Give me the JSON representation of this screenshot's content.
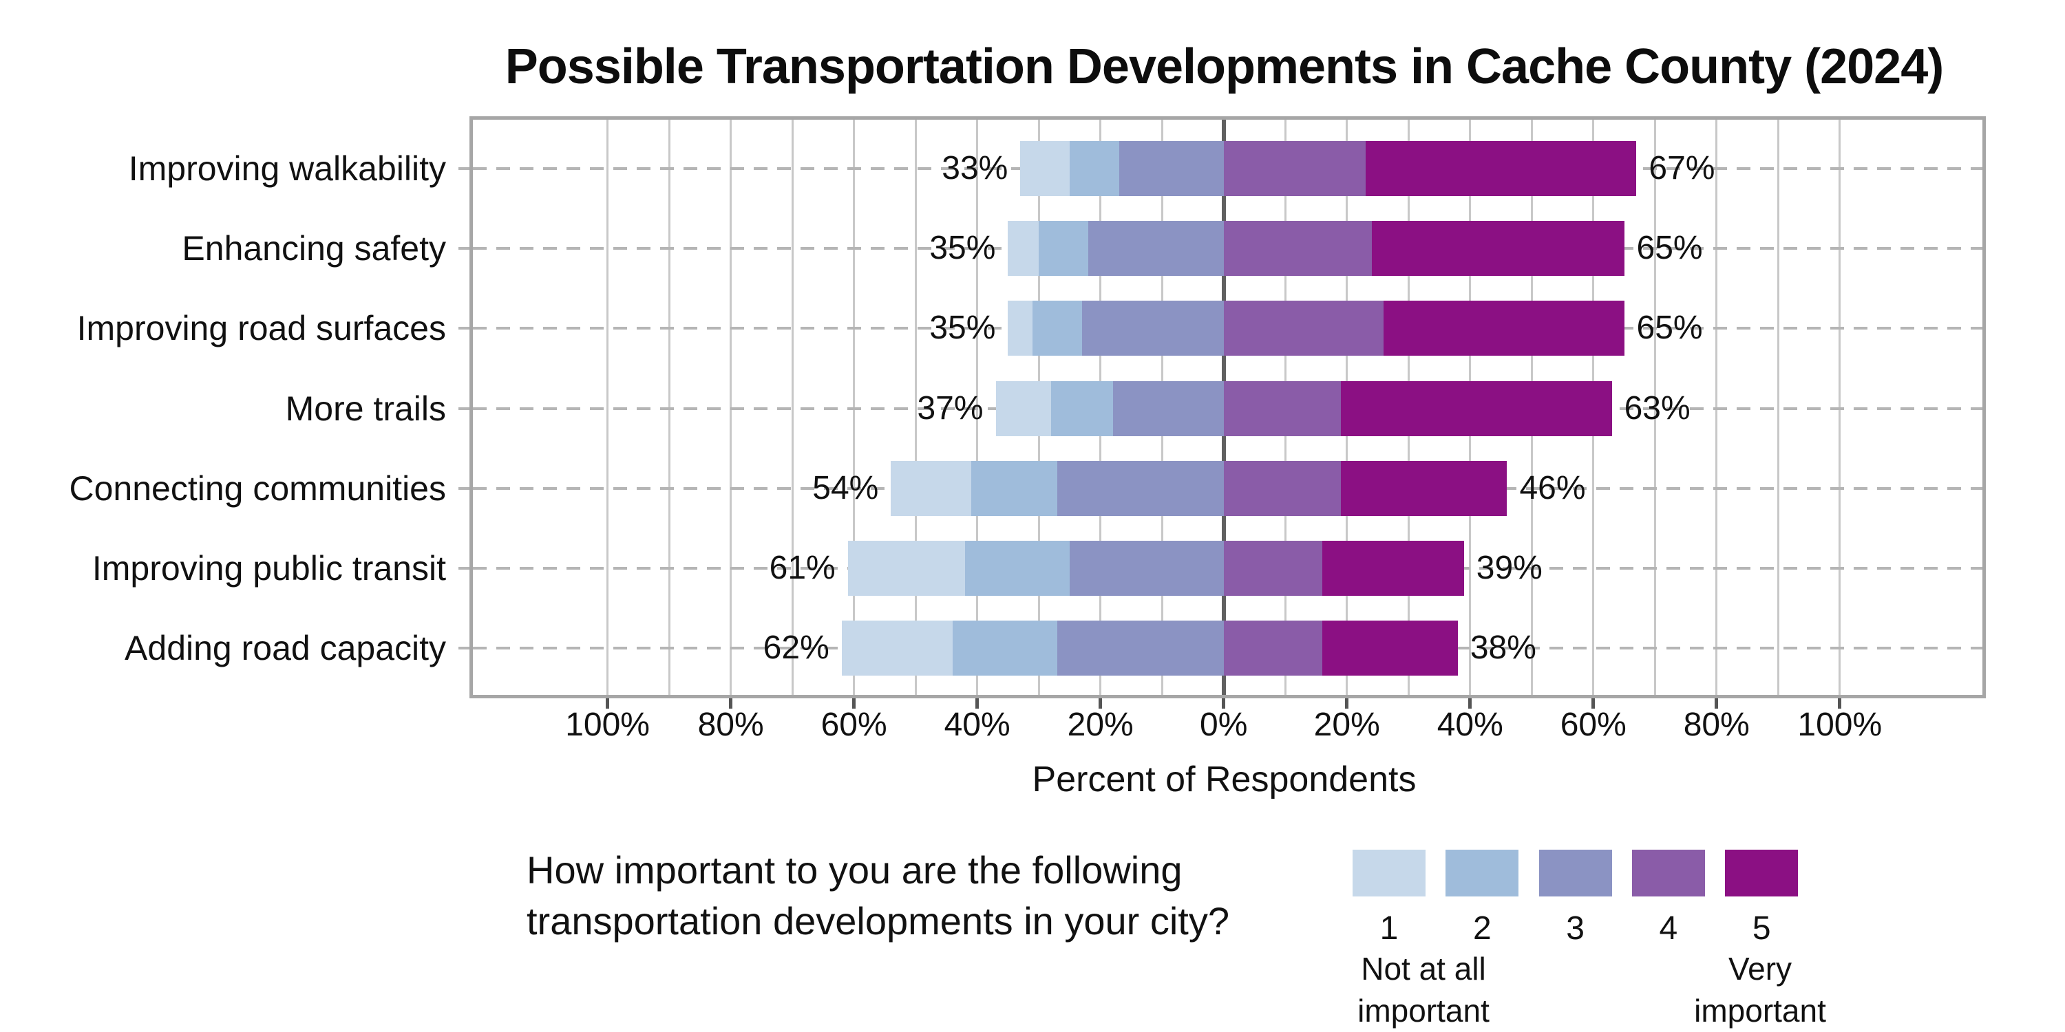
{
  "title": "Possible Transportation Developments in Cache County (2024)",
  "caption": {
    "line1": "How important to you are the following",
    "line2": "transportation developments in your city?"
  },
  "chart_data": {
    "type": "bar",
    "variant": "diverging-stacked-likert",
    "orientation": "horizontal",
    "title": "Possible Transportation Developments in Cache County (2024)",
    "xlabel": "Percent of Respondents",
    "ylabel": "",
    "categories": [
      "Improving walkability",
      "Enhancing safety",
      "Improving road surfaces",
      "More trails",
      "Connecting communities",
      "Improving public transit",
      "Adding road capacity"
    ],
    "series": [
      {
        "name": "1",
        "color": "#c6d8ea",
        "values": [
          8,
          5,
          4,
          9,
          13,
          19,
          18
        ]
      },
      {
        "name": "2",
        "color": "#9fbcdb",
        "values": [
          8,
          8,
          8,
          10,
          14,
          17,
          17
        ]
      },
      {
        "name": "3",
        "color": "#8b93c3",
        "values": [
          17,
          22,
          23,
          18,
          27,
          25,
          27
        ]
      },
      {
        "name": "4",
        "color": "#8a5ca8",
        "values": [
          23,
          24,
          26,
          19,
          19,
          16,
          16
        ]
      },
      {
        "name": "5",
        "color": "#8b1083",
        "values": [
          44,
          41,
          39,
          44,
          27,
          23,
          22
        ]
      }
    ],
    "left_side_series": [
      "1",
      "2",
      "3"
    ],
    "right_side_series": [
      "4",
      "5"
    ],
    "left_totals_labels": [
      "33%",
      "35%",
      "35%",
      "37%",
      "54%",
      "61%",
      "62%"
    ],
    "right_totals_labels": [
      "67%",
      "65%",
      "65%",
      "63%",
      "46%",
      "39%",
      "38%"
    ],
    "x_ticks": [
      {
        "value": -100,
        "label": "100%"
      },
      {
        "value": -80,
        "label": "80%"
      },
      {
        "value": -60,
        "label": "60%"
      },
      {
        "value": -40,
        "label": "40%"
      },
      {
        "value": -20,
        "label": "20%"
      },
      {
        "value": 0,
        "label": "0%"
      },
      {
        "value": 20,
        "label": "20%"
      },
      {
        "value": 40,
        "label": "40%"
      },
      {
        "value": 60,
        "label": "60%"
      },
      {
        "value": 80,
        "label": "80%"
      },
      {
        "value": 100,
        "label": "100%"
      }
    ],
    "gridline_step": 10,
    "gridline_range": [
      -100,
      100
    ],
    "xlim": [
      -121.8,
      123.2
    ],
    "grid": "minor vertical solid, horizontal dashed per category, zero line emphasized",
    "legend_position": "bottom-right",
    "legend": {
      "numbers": [
        "1",
        "2",
        "3",
        "4",
        "5"
      ],
      "min_caption_line1": "Not at all",
      "min_caption_line2": "important",
      "max_caption_line1": "Very",
      "max_caption_line2": "important"
    },
    "colors": {
      "frame": "#a6a6a6",
      "gridline": "#c8c8c8",
      "zero_line": "#606060",
      "row_dash": "#b5b5b5",
      "text": "#111111"
    }
  }
}
